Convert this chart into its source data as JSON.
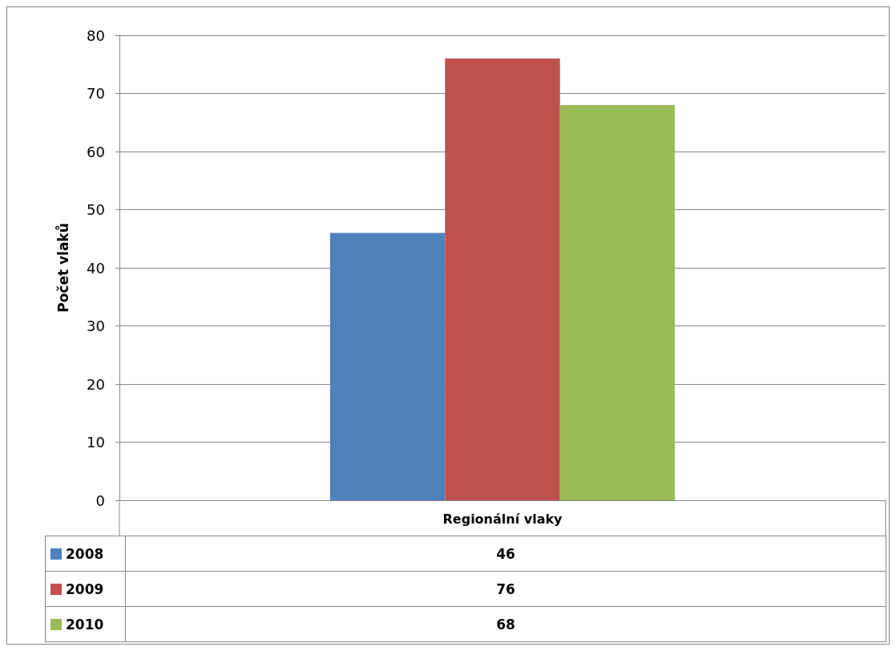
{
  "chart_data": {
    "type": "bar",
    "ylabel": "Počet vlaků",
    "categories": [
      "Regionální vlaky"
    ],
    "series": [
      {
        "name": "2008",
        "color": "#4f81bd",
        "values": [
          46
        ]
      },
      {
        "name": "2009",
        "color": "#c0504d",
        "values": [
          76
        ]
      },
      {
        "name": "2010",
        "color": "#9bbb59",
        "values": [
          68
        ]
      }
    ],
    "ylim": [
      0,
      80
    ],
    "yticks": [
      0,
      10,
      20,
      30,
      40,
      50,
      60,
      70,
      80
    ],
    "grid": "y",
    "legend": "bottom left",
    "annotations": [
      "46",
      "76",
      "68"
    ]
  }
}
